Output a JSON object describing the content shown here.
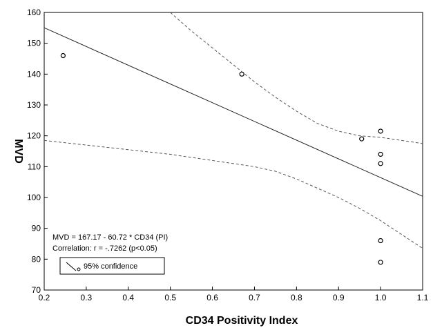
{
  "chart_data": {
    "type": "scatter",
    "xlabel": "CD34 Positivity Index",
    "ylabel": "MVD",
    "xlim": [
      0.2,
      1.1
    ],
    "ylim": [
      70,
      160
    ],
    "x_ticks": [
      0.2,
      0.3,
      0.4,
      0.5,
      0.6,
      0.7,
      0.8,
      0.9,
      1.0,
      1.1
    ],
    "x_tick_labels": [
      "0.2",
      "0.3",
      "0.4",
      "0.5",
      "0.6",
      "0.7",
      "0.8",
      "0.9",
      "1.0",
      "1.1"
    ],
    "y_ticks": [
      70,
      80,
      90,
      100,
      110,
      120,
      130,
      140,
      150,
      160
    ],
    "y_tick_labels": [
      "70",
      "80",
      "90",
      "100",
      "110",
      "120",
      "130",
      "140",
      "150",
      "160"
    ],
    "grid": false,
    "points": [
      {
        "x": 0.245,
        "y": 146
      },
      {
        "x": 0.67,
        "y": 140
      },
      {
        "x": 0.955,
        "y": 119
      },
      {
        "x": 1.0,
        "y": 121.5
      },
      {
        "x": 1.0,
        "y": 114
      },
      {
        "x": 1.0,
        "y": 111
      },
      {
        "x": 1.0,
        "y": 86
      },
      {
        "x": 1.0,
        "y": 79
      }
    ],
    "regression": {
      "intercept": 167.17,
      "slope": -60.72
    },
    "confidence_upper": {
      "x": [
        0.5,
        0.55,
        0.6,
        0.65,
        0.7,
        0.75,
        0.8,
        0.85,
        0.9,
        0.95,
        1.0,
        1.05,
        1.1
      ],
      "y": [
        160,
        154,
        148.5,
        143,
        137.5,
        132.5,
        128,
        124,
        121.5,
        120,
        119.5,
        118.5,
        117.5
      ]
    },
    "confidence_lower": {
      "x": [
        0.2,
        0.3,
        0.4,
        0.5,
        0.55,
        0.6,
        0.65,
        0.7,
        0.75,
        0.8,
        0.85,
        0.9,
        0.95,
        1.0,
        1.05,
        1.1
      ],
      "y": [
        118.5,
        117,
        115.5,
        114,
        113,
        112,
        111,
        110,
        108.5,
        106,
        103,
        100,
        96.5,
        92.5,
        88,
        83.5
      ]
    },
    "annotations": {
      "equation": "MVD    = 167.17 - 60.72  * CD34 (PI)",
      "correlation": "Correlation: r = -.7262 (p<0.05)"
    },
    "legend": {
      "label": "95% confidence",
      "position": "bottom-left"
    }
  }
}
